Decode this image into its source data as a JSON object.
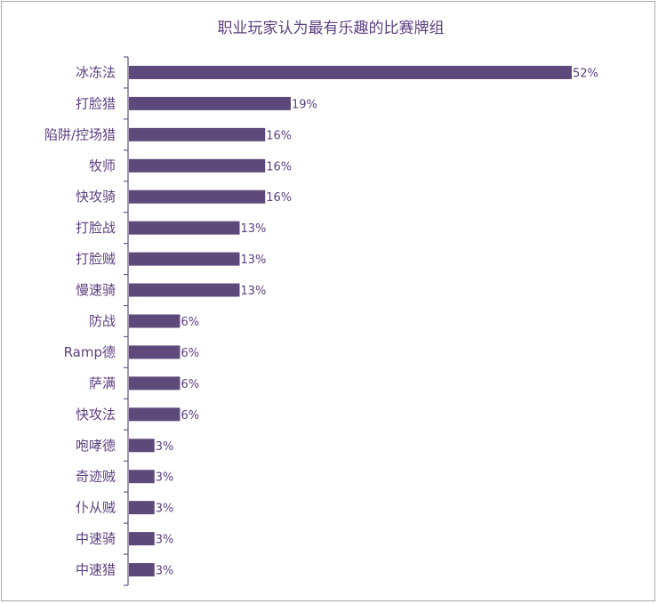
{
  "chart_data": {
    "type": "bar",
    "orientation": "horizontal",
    "title": "职业玩家认为最有乐趣的比赛牌组",
    "categories": [
      "冰冻法",
      "打脸猎",
      "陷阱/控场猎",
      "牧师",
      "快攻骑",
      "打脸战",
      "打脸贼",
      "慢速骑",
      "防战",
      "Ramp德",
      "萨满",
      "快攻法",
      "咆哮德",
      "奇迹贼",
      "仆从贼",
      "中速骑",
      "中速猎"
    ],
    "values": [
      52,
      19,
      16,
      16,
      16,
      13,
      13,
      13,
      6,
      6,
      6,
      6,
      3,
      3,
      3,
      3,
      3
    ],
    "value_labels": [
      "52%",
      "19%",
      "16%",
      "16%",
      "16%",
      "13%",
      "13%",
      "13%",
      "6%",
      "6%",
      "6%",
      "6%",
      "3%",
      "3%",
      "3%",
      "3%",
      "3%"
    ],
    "value_unit": "%",
    "xlim": [
      0,
      52
    ],
    "grid": false,
    "legend": "none",
    "bar_color": "#5e4a7a",
    "text_color": "#5b3f80"
  }
}
